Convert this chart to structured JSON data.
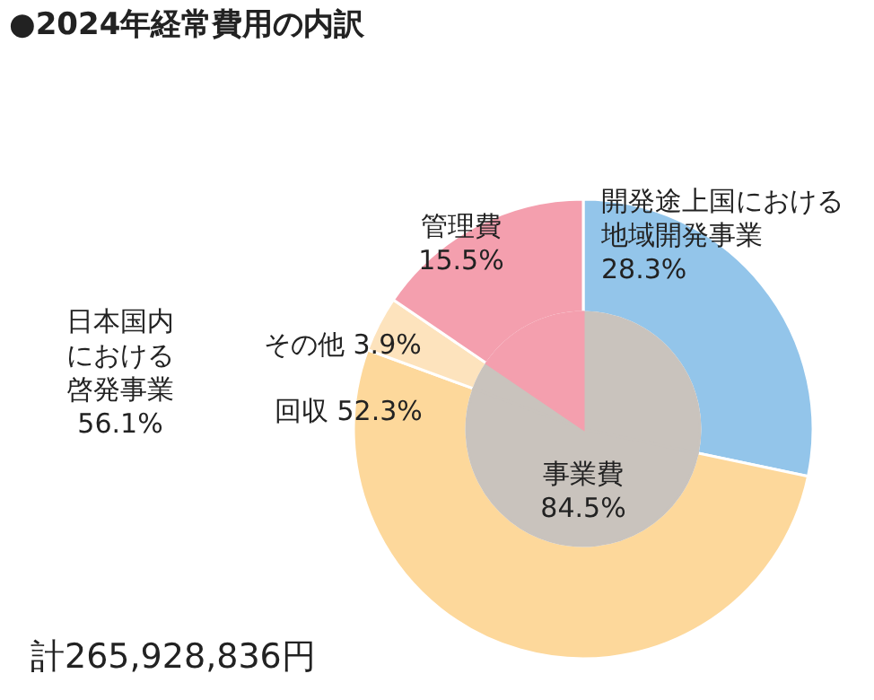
{
  "chart_data": {
    "type": "donut",
    "title": "●2024年経常費用の内訳",
    "categories": [
      "開発途上国における地域開発事業",
      "回収",
      "その他",
      "管理費"
    ],
    "series": [
      {
        "values": [
          28.3,
          52.3,
          3.9,
          15.5
        ],
        "colors": [
          "#93c5ea",
          "#fdd89b",
          "#fde3bd",
          "#f49fae"
        ],
        "value_labels": [
          "28.3%",
          "52.3%",
          "3.9%",
          "15.5%"
        ]
      },
      {
        "type": "pie",
        "values": [
          28.3,
          52.3,
          3.9,
          15.5
        ],
        "colors": [
          "#c9c3bd",
          "#c9c3bd",
          "#c9c3bd",
          "#f49fae"
        ]
      }
    ],
    "annotations": [
      "事業費 84.5%",
      "日本国内における啓発事業 56.1%",
      "計265,928,836円"
    ]
  }
}
